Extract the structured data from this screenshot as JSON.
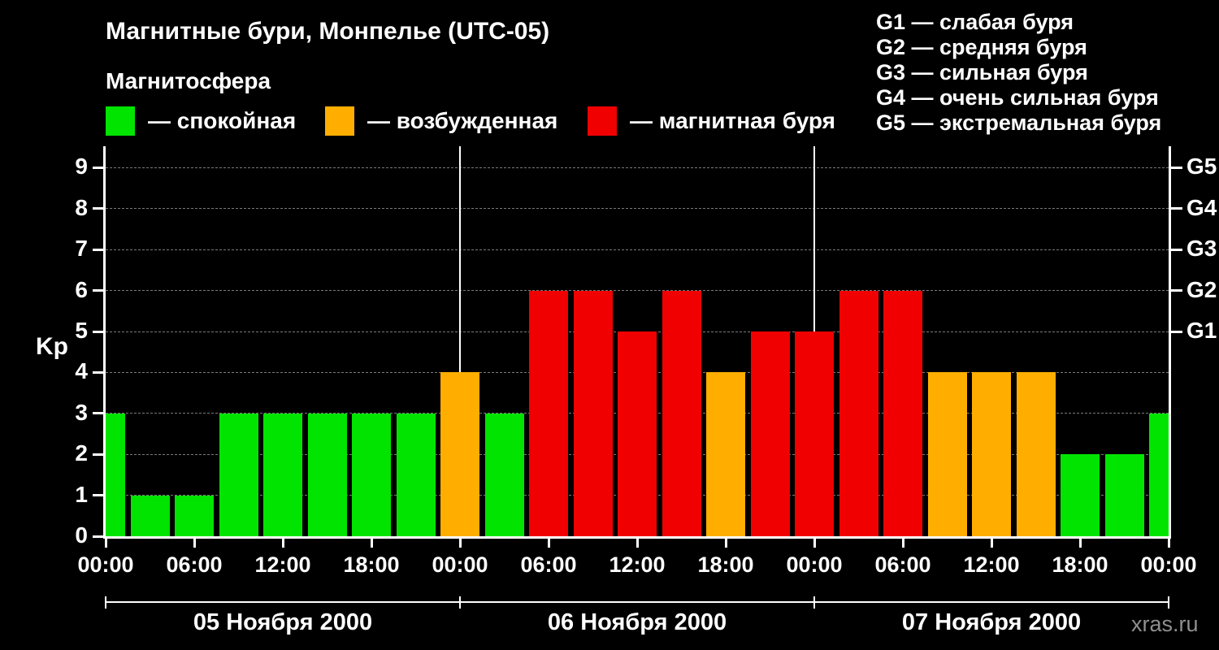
{
  "title": "Магнитные бури, Монпелье (UTC-05)",
  "subtitle": "Магнитосфера",
  "legend": {
    "items": [
      {
        "key": "quiet",
        "label": "— спокойная",
        "color": "#00E400"
      },
      {
        "key": "unsettled",
        "label": "— возбужденная",
        "color": "#FFAE00"
      },
      {
        "key": "storm",
        "label": "— магнитная буря",
        "color": "#F00000"
      }
    ]
  },
  "storm_scale": [
    "G1 — слабая буря",
    "G2 — средняя буря",
    "G3 — сильная буря",
    "G4 — очень сильная буря",
    "G5 — экстремальная буря"
  ],
  "watermark": "xras.ru",
  "chart_data": {
    "type": "bar",
    "title": "Магнитные бури, Монпелье (UTC-05)",
    "ylabel": "Kp",
    "ylim": [
      0,
      9.5
    ],
    "yticks": [
      0,
      1,
      2,
      3,
      4,
      5,
      6,
      7,
      8,
      9
    ],
    "grid": "horizontal-dashed",
    "right_axis": [
      {
        "label": "G1",
        "kp": 5
      },
      {
        "label": "G2",
        "kp": 6
      },
      {
        "label": "G3",
        "kp": 7
      },
      {
        "label": "G4",
        "kp": 8
      },
      {
        "label": "G5",
        "kp": 9
      }
    ],
    "x_hours": [
      0,
      3,
      6,
      9,
      12,
      15,
      18,
      21,
      24,
      27,
      30,
      33,
      36,
      39,
      42,
      45,
      48,
      51,
      54,
      57,
      60,
      63,
      66,
      69,
      72
    ],
    "values": [
      3,
      1,
      1,
      3,
      3,
      3,
      3,
      3,
      4,
      3,
      6,
      6,
      5,
      6,
      4,
      5,
      5,
      6,
      6,
      4,
      4,
      4,
      2,
      2,
      3
    ],
    "x_tick_hours": [
      0,
      6,
      12,
      18,
      24,
      30,
      36,
      42,
      48,
      54,
      60,
      66,
      72
    ],
    "x_tick_labels": [
      "00:00",
      "06:00",
      "12:00",
      "18:00",
      "00:00",
      "06:00",
      "12:00",
      "18:00",
      "00:00",
      "06:00",
      "12:00",
      "18:00",
      "00:00"
    ],
    "day_separator_hours": [
      24,
      48
    ],
    "day_boundary_hours": [
      0,
      24,
      48,
      72
    ],
    "days": [
      {
        "label": "05 Ноября 2000",
        "start_hour": 0,
        "end_hour": 24
      },
      {
        "label": "06 Ноября 2000",
        "start_hour": 24,
        "end_hour": 48
      },
      {
        "label": "07 Ноября 2000",
        "start_hour": 48,
        "end_hour": 72
      }
    ],
    "color_thresholds": {
      "unsettled_min": 4,
      "storm_min": 5
    },
    "colors": {
      "quiet": "#00E400",
      "unsettled": "#FFAE00",
      "storm": "#F00000"
    }
  }
}
